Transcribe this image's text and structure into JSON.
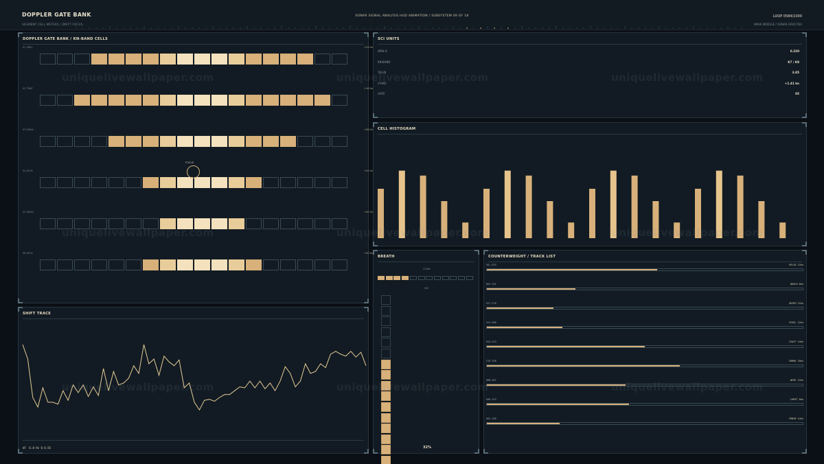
{
  "header": {
    "title": "DOPPLER GATE BANK",
    "subtitle": "SEGMENT CELL METERS / DRIFT FOCUS",
    "center": "SONAR SIGNAL ANALYSIS HUD ANIMATION  /  SUBSYSTEM 09 OF 18",
    "loop": "LOOP 0584/1000",
    "right_sub": "WAVE MODULE / SONAR-GRID ITEX"
  },
  "doppler": {
    "title": "DOPPLER GATE BANK  /  KN-BAND CELLS",
    "focus_label": "FOCUS",
    "rows": [
      {
        "label": "01 VREL",
        "value": "+24 Hz",
        "cells": "000111111111111100"
      },
      {
        "label": "02 TRAP",
        "value": "+18 Hz",
        "cells": "001111111111111110"
      },
      {
        "label": "03 VMAX",
        "value": "+08 Hz",
        "cells": "000011111111111000"
      },
      {
        "label": "04 XFCS",
        "value": "+02 Hz",
        "cells": "000000111111100000"
      },
      {
        "label": "05 XMAX",
        "value": "+00 Hz",
        "cells": "000000011111000000"
      },
      {
        "label": "06 XFCS",
        "value": "+00 Hz",
        "cells": "000000111111100000"
      }
    ]
  },
  "sci": {
    "title": "SCI UNITS",
    "rows": [
      {
        "k": "dPHI-G",
        "v": "0.220"
      },
      {
        "k": "KN-BAND",
        "v": "K7 / K8"
      },
      {
        "k": "TAU-N",
        "v": "3.85"
      },
      {
        "k": "V-RAD",
        "v": "+1.41 kn"
      },
      {
        "k": "GATE",
        "v": "05"
      }
    ]
  },
  "histogram": {
    "title": "CELL HISTOGRAM",
    "values": [
      0.6,
      0.82,
      0.76,
      0.45,
      0.19,
      0.6,
      0.82,
      0.76,
      0.45,
      0.19,
      0.6,
      0.82,
      0.76,
      0.45,
      0.19,
      0.6,
      0.82,
      0.76,
      0.45,
      0.19
    ]
  },
  "shift": {
    "title": "SHIFT TRACE",
    "readout": "dF  -6.0 Hz   Q 0.56",
    "values": [
      0.9,
      0.75,
      0.35,
      0.25,
      0.45,
      0.3,
      0.3,
      0.28,
      0.42,
      0.32,
      0.48,
      0.4,
      0.48,
      0.36,
      0.46,
      0.37,
      0.65,
      0.42,
      0.62,
      0.48,
      0.5,
      0.55,
      0.68,
      0.6,
      0.9,
      0.7,
      0.75,
      0.58,
      0.78,
      0.72,
      0.68,
      0.74,
      0.45,
      0.5,
      0.3,
      0.22,
      0.32,
      0.33,
      0.31,
      0.35,
      0.38,
      0.38,
      0.42,
      0.46,
      0.45,
      0.52,
      0.45,
      0.52,
      0.44,
      0.5,
      0.42,
      0.52,
      0.67,
      0.6,
      0.46,
      0.52,
      0.7,
      0.6,
      0.62,
      0.7,
      0.66,
      0.8,
      0.83,
      0.8,
      0.78,
      0.83,
      0.77,
      0.82,
      0.68
    ]
  },
  "breath": {
    "title": "BREATH",
    "top_label": "CONN",
    "mid_label": "DIV",
    "h_segments": 12,
    "h_on": 4,
    "v_segments": 18,
    "v_on": 12,
    "percent": "32%"
  },
  "tracks": {
    "title": "COUNTERWEIGHT  /  TRACK LIST",
    "items": [
      {
        "id": "SEL-029",
        "name": "VELVO 12kn",
        "fill": 0.54
      },
      {
        "id": "BAS-761",
        "name": "DRACH 8kn",
        "fill": 0.28
      },
      {
        "id": "527-278",
        "name": "GRIPH 12kn",
        "fill": 0.21
      },
      {
        "id": "514-988",
        "name": "VIVEL 12kn",
        "fill": 0.24
      },
      {
        "id": "HSA-433",
        "name": "CSAST 14kn",
        "fill": 0.5
      },
      {
        "id": "STD-298",
        "name": "IRRNS 18kn",
        "fill": 0.61
      },
      {
        "id": "HRN-487",
        "name": "WCRE 12kn",
        "fill": 0.44
      },
      {
        "id": "KAR-333",
        "name": "LKMIT 8kn",
        "fill": 0.45
      },
      {
        "id": "HAS-180",
        "name": "YKNIB 14kn",
        "fill": 0.23
      }
    ]
  },
  "watermark": "uniquelivewallpaper.com"
}
